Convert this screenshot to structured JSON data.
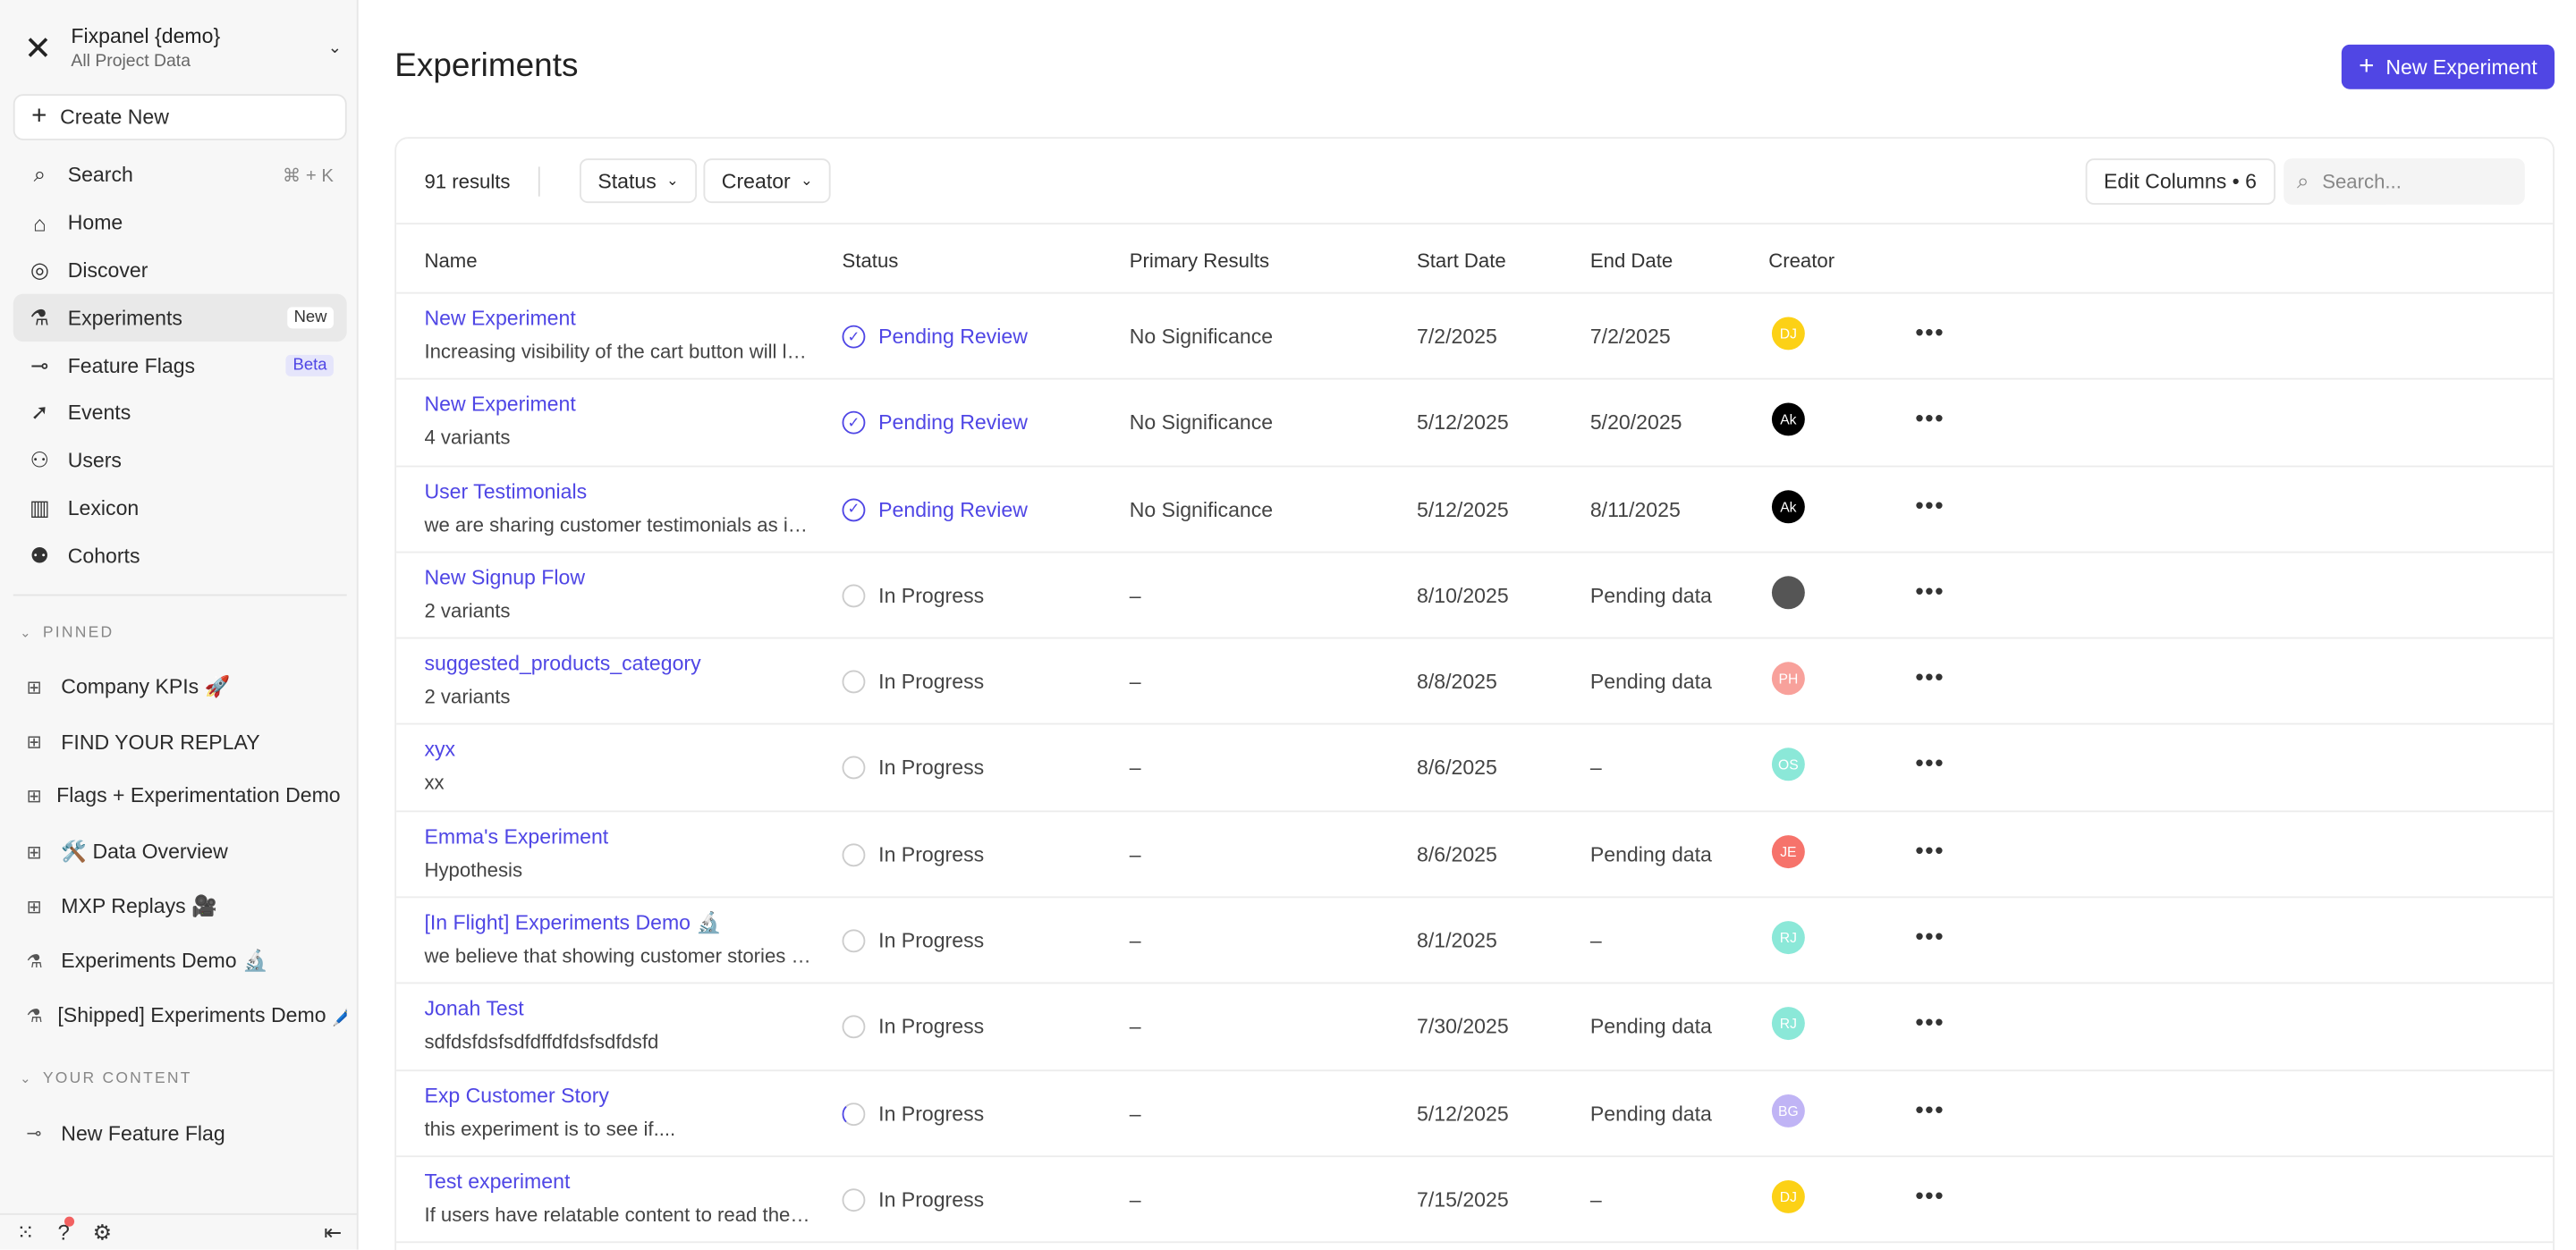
{
  "sidebar": {
    "project_name": "Fixpanel {demo}",
    "project_scope": "All Project Data",
    "create_new": "Create New",
    "nav": [
      {
        "label": "Search",
        "icon": "search-icon",
        "shortcut": "⌘ + K"
      },
      {
        "label": "Home",
        "icon": "home-icon"
      },
      {
        "label": "Discover",
        "icon": "compass-icon"
      },
      {
        "label": "Experiments",
        "icon": "flask-icon",
        "badge": "New",
        "active": true
      },
      {
        "label": "Feature Flags",
        "icon": "toggle-icon",
        "badge": "Beta"
      },
      {
        "label": "Events",
        "icon": "cursor-click-icon"
      },
      {
        "label": "Users",
        "icon": "users-icon"
      },
      {
        "label": "Lexicon",
        "icon": "book-icon"
      },
      {
        "label": "Cohorts",
        "icon": "cohorts-icon"
      }
    ],
    "pinned_label": "PINNED",
    "pinned": [
      {
        "label": "Company KPIs 🚀",
        "icon": "board-icon"
      },
      {
        "label": "FIND YOUR REPLAY",
        "icon": "board-icon"
      },
      {
        "label": "Flags + Experimentation Demo 🧪",
        "icon": "board-icon"
      },
      {
        "label": "🛠️ Data Overview",
        "icon": "board-icon"
      },
      {
        "label": "MXP Replays 🎥",
        "icon": "board-icon"
      },
      {
        "label": "Experiments Demo 🔬",
        "icon": "flask-icon"
      },
      {
        "label": "[Shipped] Experiments Demo 🖊️",
        "icon": "flask-icon"
      }
    ],
    "your_content_label": "YOUR CONTENT",
    "your_content": [
      {
        "label": "New Feature Flag",
        "icon": "toggle-icon"
      }
    ]
  },
  "header": {
    "title": "Experiments",
    "new_button": "New Experiment"
  },
  "toolbar": {
    "results": "91 results",
    "status_filter": "Status",
    "creator_filter": "Creator",
    "edit_columns": "Edit Columns • 6",
    "search_placeholder": "Search..."
  },
  "table": {
    "columns": [
      "Name",
      "Status",
      "Primary Results",
      "Start Date",
      "End Date",
      "Creator"
    ],
    "rows": [
      {
        "name": "New Experiment",
        "desc": "Increasing visibility of the cart button will lead to more conversions",
        "status": "Pending Review",
        "result": "No Significance",
        "start": "7/2/2025",
        "end": "7/2/2025",
        "creator": "DJ",
        "color": "#fcd116"
      },
      {
        "name": "New Experiment",
        "desc": "4 variants",
        "status": "Pending Review",
        "result": "No Significance",
        "start": "5/12/2025",
        "end": "5/20/2025",
        "creator": "Ak",
        "color": "#000000"
      },
      {
        "name": "User Testimonials",
        "desc": "we are sharing customer testimonials as increased trust",
        "status": "Pending Review",
        "result": "No Significance",
        "start": "5/12/2025",
        "end": "8/11/2025",
        "creator": "Ak",
        "color": "#000000"
      },
      {
        "name": "New Signup Flow",
        "desc": "2 variants",
        "status": "In Progress",
        "result": "–",
        "start": "8/10/2025",
        "end": "Pending data",
        "creator": "",
        "color": "#555555"
      },
      {
        "name": "suggested_products_category",
        "desc": "2 variants",
        "status": "In Progress",
        "result": "–",
        "start": "8/8/2025",
        "end": "Pending data",
        "creator": "PH",
        "color": "#f8a19b"
      },
      {
        "name": "xyx",
        "desc": "xx",
        "status": "In Progress",
        "result": "–",
        "start": "8/6/2025",
        "end": "–",
        "creator": "OS",
        "color": "#8be8d8"
      },
      {
        "name": "Emma's Experiment",
        "desc": "Hypothesis",
        "status": "In Progress",
        "result": "–",
        "start": "8/6/2025",
        "end": "Pending data",
        "creator": "JE",
        "color": "#f6736b"
      },
      {
        "name": "[In Flight] Experiments Demo 🔬",
        "desc": "we believe that showing customer stories will increase",
        "status": "In Progress",
        "result": "–",
        "start": "8/1/2025",
        "end": "–",
        "creator": "RJ",
        "color": "#8be8d8"
      },
      {
        "name": "Jonah Test",
        "desc": "sdfdsfdsfsdfdffdfdsfsdfdsfd",
        "status": "In Progress",
        "result": "–",
        "start": "7/30/2025",
        "end": "Pending data",
        "creator": "RJ",
        "color": "#8be8d8"
      },
      {
        "name": "Exp Customer Story",
        "desc": "this experiment is to see if....",
        "status": "In Progress",
        "result": "–",
        "start": "5/12/2025",
        "end": "Pending data",
        "creator": "BG",
        "color": "#c0b4f5",
        "spin": true
      },
      {
        "name": "Test experiment",
        "desc": "If users have relatable content to read they will convert",
        "status": "In Progress",
        "result": "–",
        "start": "7/15/2025",
        "end": "–",
        "creator": "DJ",
        "color": "#fcd116"
      }
    ]
  },
  "colors": {
    "accent": "#5046e4",
    "sidebar_bg": "#f7f7f7"
  }
}
